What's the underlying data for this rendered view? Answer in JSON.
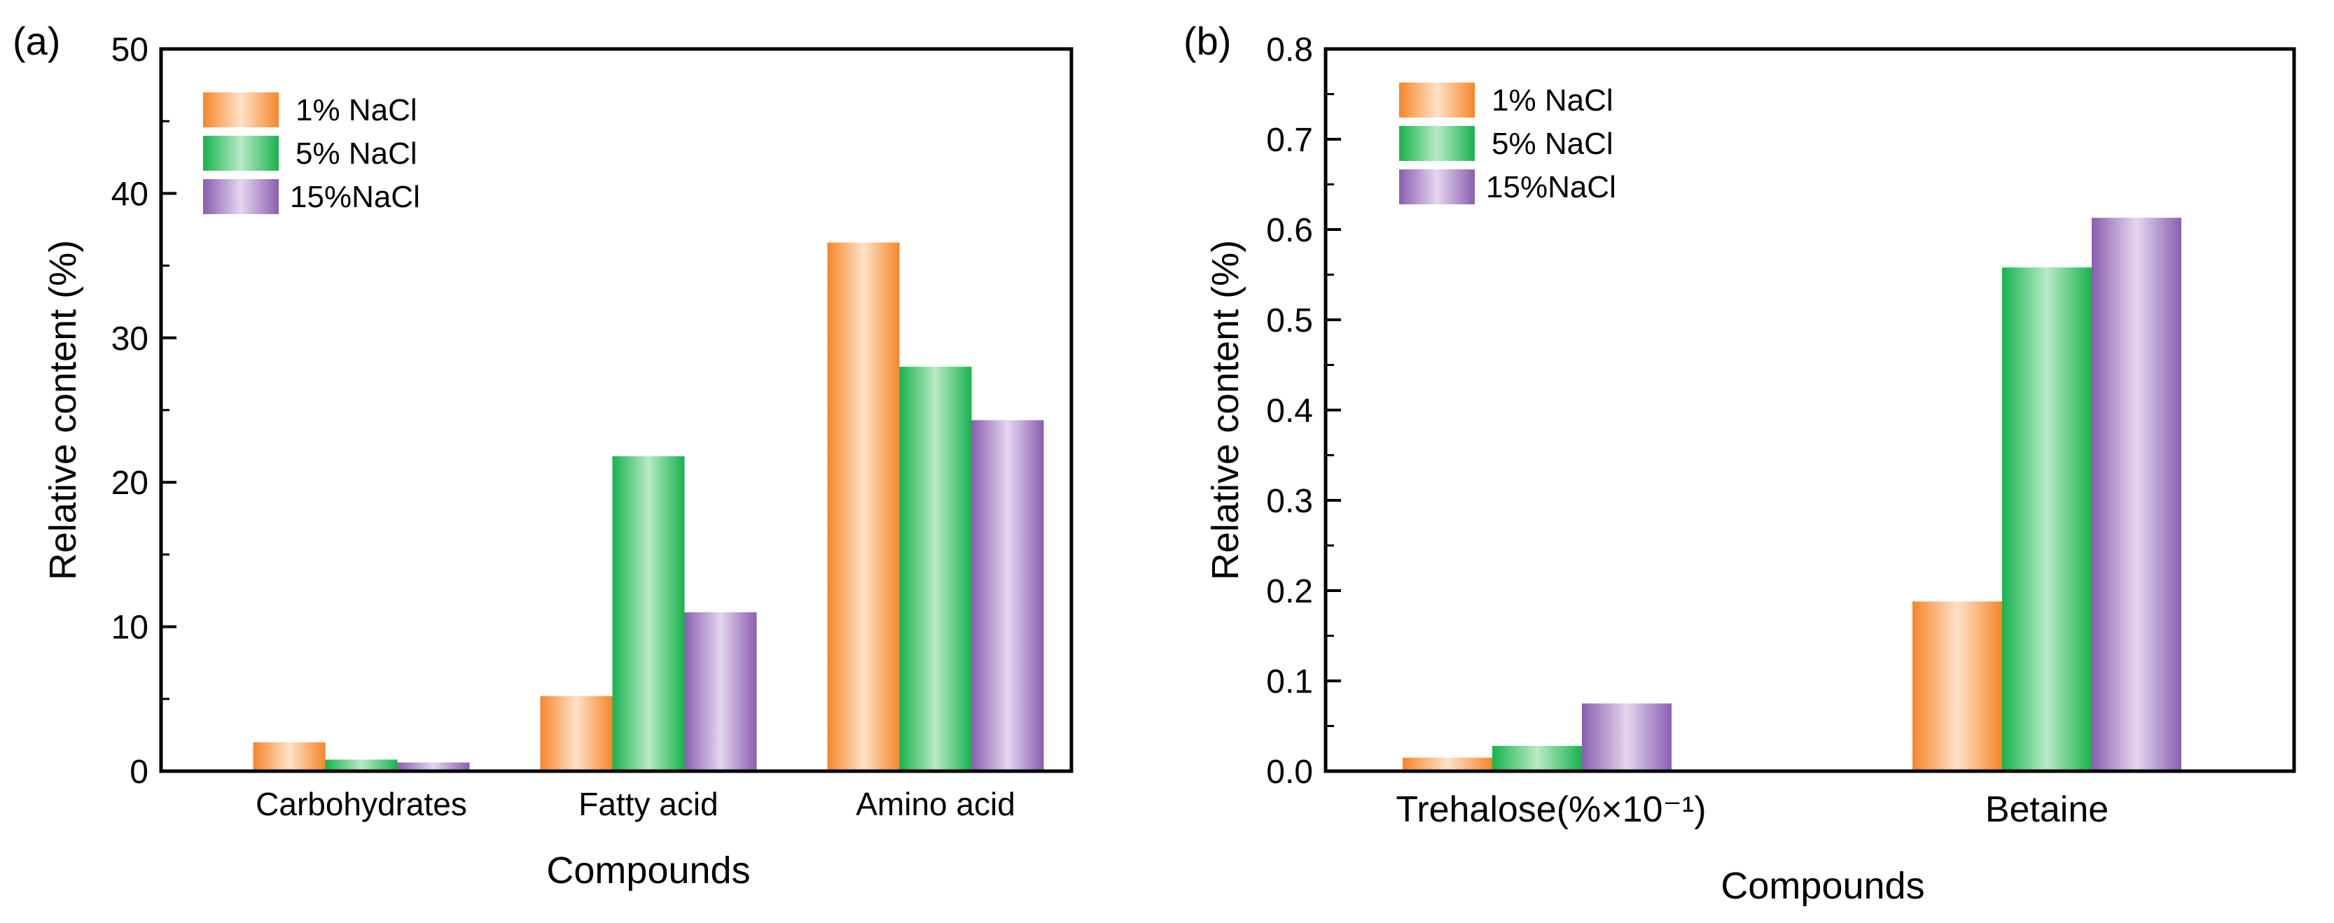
{
  "colors": {
    "1% NaCl": "#F7862A",
    "5% NaCl": "#18B34E",
    "15%NaCl": "#8B5EB0"
  },
  "chart_data": [
    {
      "panel_label": "(a)",
      "type": "bar",
      "categories": [
        "Carbohydrates",
        "Fatty acid",
        "Amino acid"
      ],
      "series": [
        {
          "name": "1% NaCl",
          "values": [
            2.0,
            5.2,
            36.6
          ]
        },
        {
          "name": "5% NaCl",
          "values": [
            0.8,
            21.8,
            28.0
          ]
        },
        {
          "name": "15%NaCl",
          "values": [
            0.6,
            11.0,
            24.3
          ]
        }
      ],
      "xlabel": "Compounds",
      "ylabel": "Relative content (%)",
      "ylim": [
        0,
        50
      ],
      "yticks": [
        "0",
        "10",
        "20",
        "30",
        "40",
        "50"
      ],
      "legend": "top-left",
      "grid": false
    },
    {
      "panel_label": "(b)",
      "type": "bar",
      "categories": [
        "Trehalose(%×10⁻¹)",
        "Betaine"
      ],
      "series": [
        {
          "name": "1% NaCl",
          "values": [
            0.015,
            0.188
          ]
        },
        {
          "name": "5% NaCl",
          "values": [
            0.028,
            0.558
          ]
        },
        {
          "name": "15%NaCl",
          "values": [
            0.075,
            0.613
          ]
        }
      ],
      "xlabel": "Compounds",
      "ylabel": "Relative content (%)",
      "ylim": [
        0,
        0.8
      ],
      "yticks": [
        "0.0",
        "0.1",
        "0.2",
        "0.3",
        "0.4",
        "0.5",
        "0.6",
        "0.7",
        "0.8"
      ],
      "legend": "top-left",
      "grid": false
    }
  ]
}
